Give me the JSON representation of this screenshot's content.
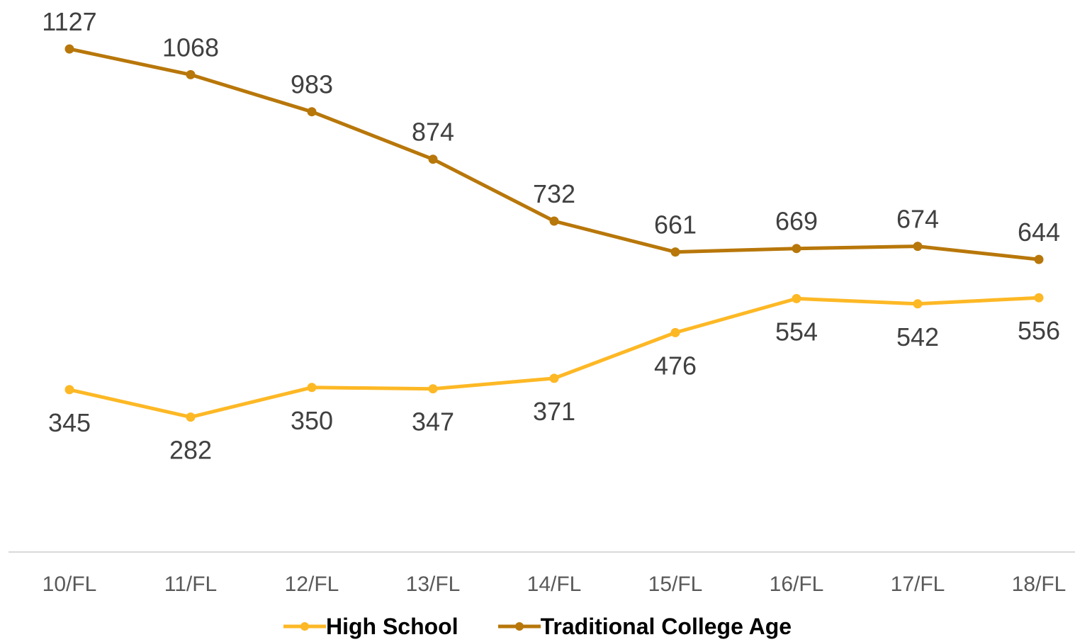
{
  "chart_data": {
    "type": "line",
    "categories": [
      "10/FL",
      "11/FL",
      "12/FL",
      "13/FL",
      "14/FL",
      "15/FL",
      "16/FL",
      "17/FL",
      "18/FL"
    ],
    "series": [
      {
        "name": "High School",
        "color": "#FDB825",
        "label_position": "below",
        "values": [
          345,
          282,
          350,
          347,
          371,
          476,
          554,
          542,
          556
        ]
      },
      {
        "name": "Traditional College Age",
        "color": "#B8770A",
        "label_position": "above",
        "values": [
          1127,
          1068,
          983,
          874,
          732,
          661,
          669,
          674,
          644
        ]
      }
    ],
    "title": "",
    "xlabel": "",
    "ylabel": "",
    "ylim": [
      0,
      1200
    ],
    "grid": false,
    "legend_position": "bottom",
    "axis_color": "#D9D9D9",
    "label_color": "#404040"
  }
}
